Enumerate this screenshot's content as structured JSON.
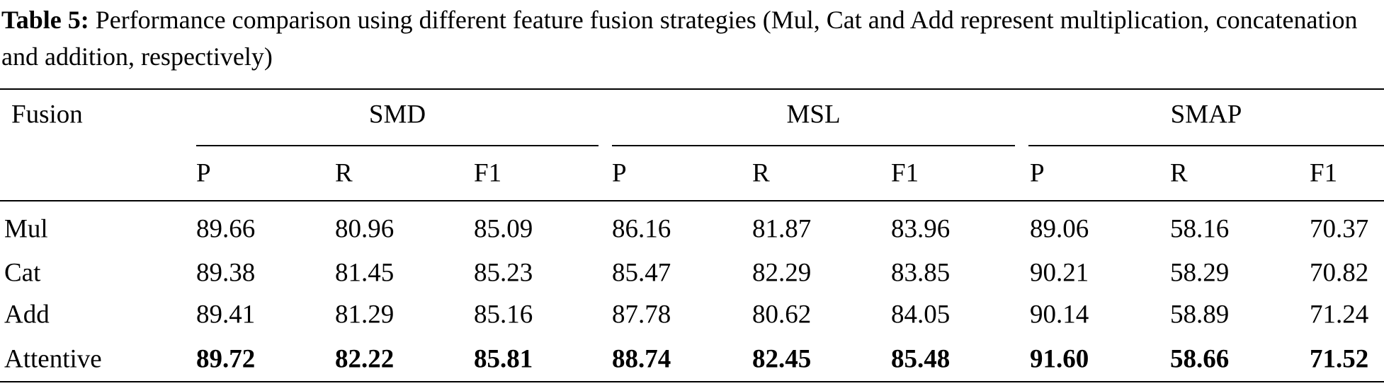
{
  "caption": {
    "label": "Table 5:",
    "text": "Performance comparison using different feature fusion strategies (Mul, Cat and Add represent multiplication, concatenation and addition, respectively)"
  },
  "table": {
    "corner": "Fusion",
    "groups": [
      "SMD",
      "MSL",
      "SMAP"
    ],
    "subheaders": [
      "P",
      "R",
      "F1",
      "P",
      "R",
      "F1",
      "P",
      "R",
      "F1"
    ],
    "rows": [
      [
        "Mul",
        "89.66",
        "80.96",
        "85.09",
        "86.16",
        "81.87",
        "83.96",
        "89.06",
        "58.16",
        "70.37"
      ],
      [
        "Cat",
        "89.38",
        "81.45",
        "85.23",
        "85.47",
        "82.29",
        "83.85",
        "90.21",
        "58.29",
        "70.82"
      ],
      [
        "Add",
        "89.41",
        "81.29",
        "85.16",
        "87.78",
        "80.62",
        "84.05",
        "90.14",
        "58.89",
        "71.24"
      ],
      [
        "Attentive",
        "89.72",
        "82.22",
        "85.81",
        "88.74",
        "82.45",
        "85.48",
        "91.60",
        "58.66",
        "71.52"
      ]
    ]
  }
}
